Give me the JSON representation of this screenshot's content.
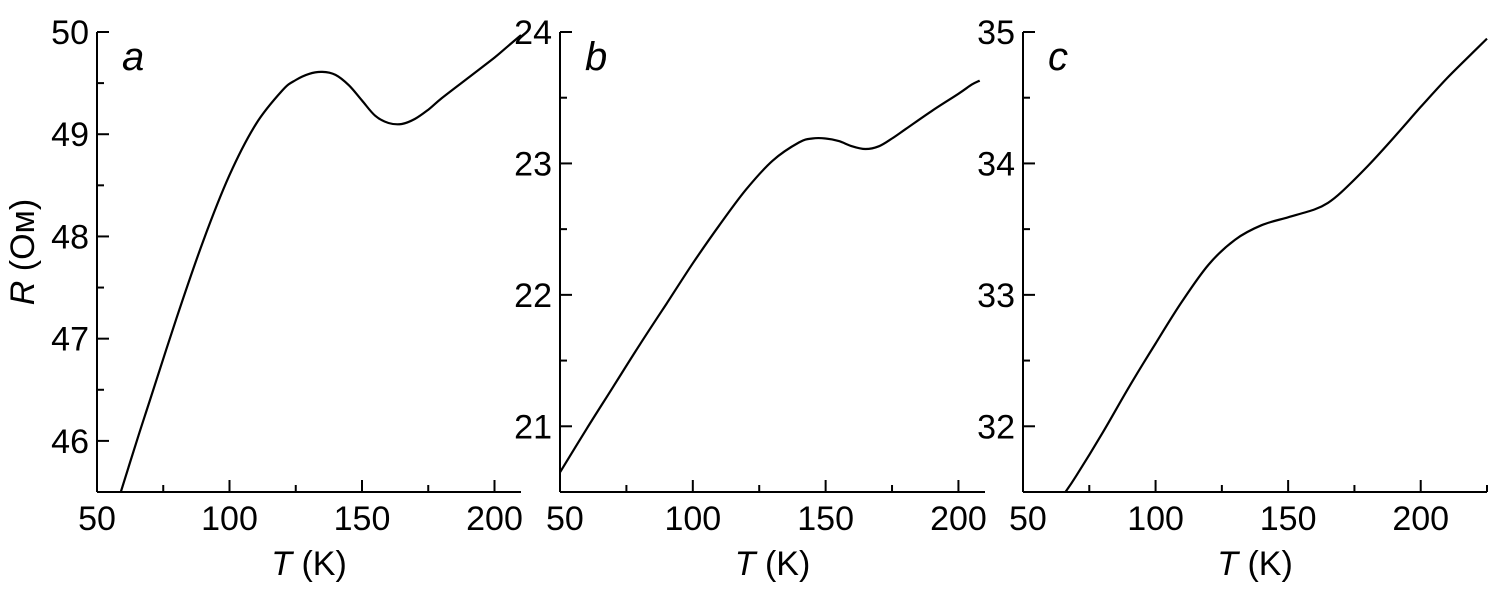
{
  "chart_data": [
    {
      "type": "line",
      "panel_label": "a",
      "xlabel_var": "T",
      "xlabel_unit": " (K)",
      "ylabel_var": "R",
      "ylabel_unit": " (Ом)",
      "xlim": [
        50,
        210
      ],
      "ylim": [
        45.5,
        50
      ],
      "xticks": [
        50,
        100,
        150,
        200
      ],
      "yticks": [
        46,
        47,
        48,
        49,
        50
      ],
      "series": [
        {
          "x": [
            59,
            65,
            70,
            80,
            90,
            100,
            110,
            120,
            125,
            130,
            135,
            140,
            145,
            150,
            155,
            160,
            165,
            170,
            175,
            180,
            190,
            200,
            205,
            210
          ],
          "y": [
            45.5,
            46.0,
            46.4,
            47.2,
            47.95,
            48.6,
            49.1,
            49.43,
            49.53,
            49.59,
            49.61,
            49.58,
            49.48,
            49.33,
            49.18,
            49.11,
            49.1,
            49.15,
            49.24,
            49.35,
            49.55,
            49.75,
            49.86,
            49.97
          ]
        }
      ]
    },
    {
      "type": "line",
      "panel_label": "b",
      "xlabel_var": "T",
      "xlabel_unit": " (K)",
      "ylabel_var": "",
      "ylabel_unit": "",
      "xlim": [
        50,
        210
      ],
      "ylim": [
        20.5,
        24
      ],
      "xticks": [
        50,
        100,
        150,
        200
      ],
      "yticks": [
        21,
        22,
        23,
        24
      ],
      "series": [
        {
          "x": [
            50,
            60,
            70,
            80,
            90,
            100,
            110,
            120,
            130,
            140,
            145,
            150,
            155,
            160,
            165,
            170,
            175,
            180,
            190,
            200,
            205,
            208
          ],
          "y": [
            20.65,
            20.98,
            21.3,
            21.62,
            21.93,
            22.24,
            22.53,
            22.8,
            23.02,
            23.16,
            23.19,
            23.19,
            23.17,
            23.13,
            23.11,
            23.13,
            23.19,
            23.26,
            23.4,
            23.53,
            23.6,
            23.63
          ]
        }
      ]
    },
    {
      "type": "line",
      "panel_label": "c",
      "xlabel_var": "T",
      "xlabel_unit": " (K)",
      "ylabel_var": "",
      "ylabel_unit": "",
      "xlim": [
        50,
        225
      ],
      "ylim": [
        31.5,
        35
      ],
      "xticks": [
        50,
        100,
        150,
        200
      ],
      "yticks": [
        32,
        33,
        34,
        35
      ],
      "series": [
        {
          "x": [
            66,
            70,
            80,
            90,
            100,
            110,
            120,
            130,
            140,
            150,
            160,
            165,
            170,
            180,
            190,
            200,
            210,
            220,
            225
          ],
          "y": [
            31.5,
            31.62,
            31.95,
            32.3,
            32.63,
            32.95,
            33.23,
            33.42,
            33.53,
            33.59,
            33.65,
            33.7,
            33.78,
            33.98,
            34.2,
            34.43,
            34.65,
            34.85,
            34.95
          ]
        }
      ]
    }
  ]
}
